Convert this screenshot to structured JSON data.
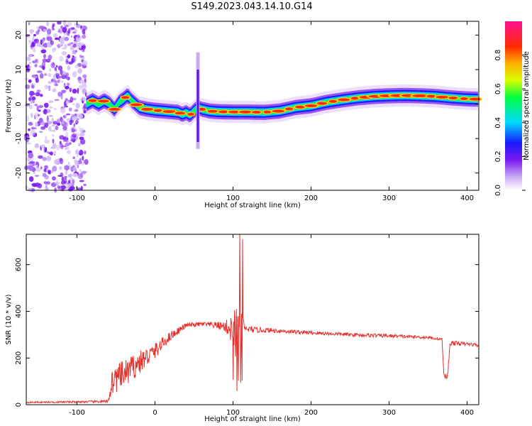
{
  "title": "S149.2023.043.14.10.G14",
  "chart_data": [
    {
      "type": "heatmap",
      "xlabel": "Height of straight line (km)",
      "ylabel": "Frequency (Hz)",
      "xlim": [
        -165,
        415
      ],
      "ylim": [
        -25,
        24
      ],
      "xticks": [
        -100,
        0,
        100,
        200,
        300,
        400
      ],
      "yticks": [
        -20,
        -10,
        0,
        10,
        20
      ],
      "noise_region_x": [
        -165,
        -88
      ],
      "ridge": {
        "x": [
          -88,
          -80,
          -72,
          -65,
          -58,
          -52,
          -46,
          -40,
          -35,
          -30,
          -20,
          -10,
          0,
          10,
          20,
          30,
          35,
          40,
          45,
          50,
          55,
          60,
          70,
          80,
          100,
          120,
          140,
          160,
          180,
          200,
          220,
          240,
          260,
          280,
          300,
          320,
          340,
          360,
          380,
          400,
          415
        ],
        "y": [
          0,
          1,
          0,
          1,
          0,
          -1.5,
          0.5,
          1.5,
          2.5,
          1,
          -1,
          -1.5,
          -1.8,
          -2,
          -2.2,
          -2.4,
          -3,
          -2.5,
          -3.2,
          -2,
          -1,
          -1.5,
          -2,
          -2.2,
          -2.3,
          -2.3,
          -2.4,
          -2,
          -1,
          -0.5,
          0.5,
          1.2,
          1.8,
          2.2,
          2.4,
          2.5,
          2.4,
          2.2,
          1.8,
          1.5,
          1.4
        ]
      },
      "spike": {
        "x": 55,
        "ymin": -13,
        "ymax": 15
      },
      "colorbar": {
        "label": "Normalized spectral amplitude",
        "range": [
          0,
          1
        ],
        "ticks": [
          "0.0",
          "0.2",
          "0.4",
          "0.6",
          "0.8"
        ]
      }
    },
    {
      "type": "line",
      "xlabel": "Height of straight line (km)",
      "ylabel": "SNR (10 * v/v)",
      "xlim": [
        -165,
        415
      ],
      "ylim": [
        0,
        730
      ],
      "xticks": [
        -100,
        0,
        100,
        200,
        300,
        400
      ],
      "yticks": [
        0,
        200,
        400,
        600
      ],
      "color": "#e8302c",
      "series": [
        {
          "x": [
            -165,
            -100,
            -60,
            -55,
            -40,
            -20,
            0,
            20,
            40,
            60,
            80,
            90,
            100,
            105,
            110,
            115,
            130,
            150,
            200,
            250,
            300,
            350,
            368,
            370,
            375,
            378,
            380,
            400,
            415
          ],
          "y": [
            10,
            12,
            14,
            100,
            130,
            180,
            230,
            295,
            340,
            345,
            340,
            335,
            320,
            300,
            310,
            325,
            320,
            318,
            308,
            300,
            295,
            288,
            280,
            125,
            120,
            260,
            265,
            260,
            255
          ],
          "noise": [
            3,
            4,
            6,
            60,
            60,
            50,
            35,
            20,
            10,
            10,
            15,
            25,
            70,
            150,
            120,
            15,
            12,
            10,
            8,
            8,
            8,
            6,
            6,
            15,
            15,
            10,
            10,
            8,
            8
          ]
        }
      ]
    }
  ]
}
